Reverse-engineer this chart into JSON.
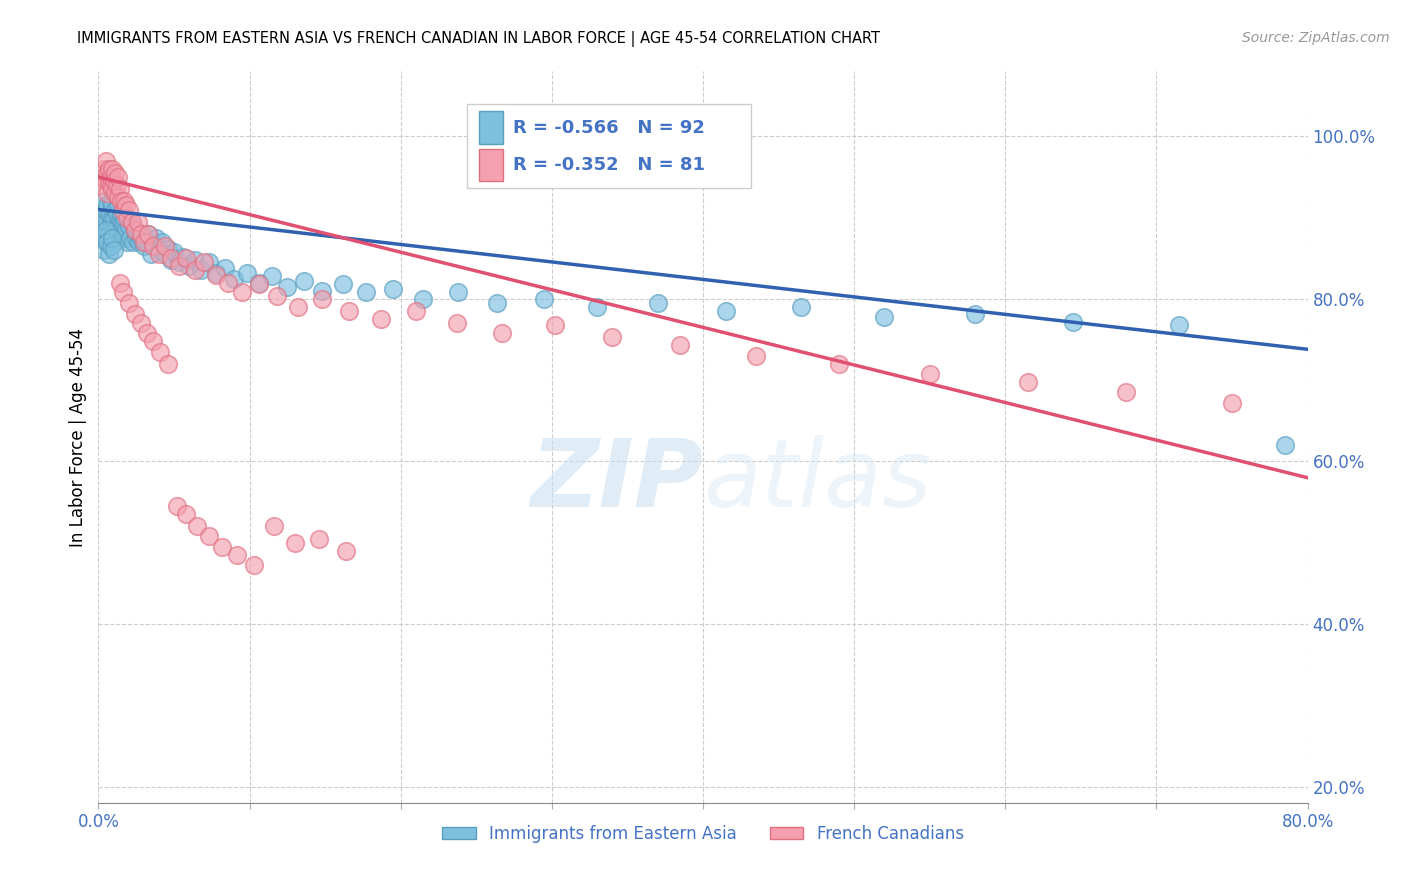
{
  "title": "IMMIGRANTS FROM EASTERN ASIA VS FRENCH CANADIAN IN LABOR FORCE | AGE 45-54 CORRELATION CHART",
  "source": "Source: ZipAtlas.com",
  "ylabel": "In Labor Force | Age 45-54",
  "legend_blue_r": "R = -0.566",
  "legend_blue_n": "N = 92",
  "legend_pink_r": "R = -0.352",
  "legend_pink_n": "N = 81",
  "legend_blue_label": "Immigrants from Eastern Asia",
  "legend_pink_label": "French Canadians",
  "blue_color": "#7fbfdf",
  "pink_color": "#f4a0b0",
  "blue_edge_color": "#5a9fc0",
  "pink_edge_color": "#e07080",
  "blue_line_color": "#3060b0",
  "pink_line_color": "#e05070",
  "axis_label_color": "#4472c4",
  "watermark_color": "#c8dff0",
  "xmin": 0.0,
  "xmax": 0.8,
  "ymin": 0.18,
  "ymax": 1.08,
  "blue_scatter_x": [
    0.002,
    0.003,
    0.004,
    0.004,
    0.005,
    0.005,
    0.006,
    0.006,
    0.007,
    0.007,
    0.008,
    0.008,
    0.009,
    0.009,
    0.01,
    0.01,
    0.011,
    0.011,
    0.012,
    0.012,
    0.013,
    0.013,
    0.014,
    0.014,
    0.015,
    0.015,
    0.016,
    0.016,
    0.017,
    0.017,
    0.018,
    0.019,
    0.02,
    0.021,
    0.022,
    0.023,
    0.024,
    0.025,
    0.026,
    0.027,
    0.028,
    0.03,
    0.032,
    0.033,
    0.035,
    0.037,
    0.038,
    0.04,
    0.042,
    0.044,
    0.046,
    0.048,
    0.05,
    0.053,
    0.056,
    0.06,
    0.064,
    0.068,
    0.073,
    0.078,
    0.084,
    0.09,
    0.098,
    0.106,
    0.115,
    0.125,
    0.136,
    0.148,
    0.162,
    0.177,
    0.195,
    0.215,
    0.238,
    0.264,
    0.295,
    0.33,
    0.37,
    0.415,
    0.465,
    0.52,
    0.58,
    0.645,
    0.715,
    0.785,
    0.003,
    0.004,
    0.005,
    0.006,
    0.007,
    0.008,
    0.009,
    0.01
  ],
  "blue_scatter_y": [
    0.9,
    0.88,
    0.92,
    0.895,
    0.91,
    0.87,
    0.895,
    0.915,
    0.905,
    0.88,
    0.92,
    0.895,
    0.9,
    0.915,
    0.885,
    0.9,
    0.91,
    0.87,
    0.89,
    0.905,
    0.88,
    0.915,
    0.895,
    0.9,
    0.885,
    0.905,
    0.88,
    0.895,
    0.875,
    0.9,
    0.885,
    0.87,
    0.89,
    0.875,
    0.895,
    0.87,
    0.885,
    0.875,
    0.88,
    0.87,
    0.875,
    0.865,
    0.87,
    0.88,
    0.855,
    0.868,
    0.875,
    0.86,
    0.87,
    0.855,
    0.862,
    0.848,
    0.858,
    0.845,
    0.852,
    0.84,
    0.848,
    0.835,
    0.845,
    0.832,
    0.838,
    0.825,
    0.832,
    0.82,
    0.828,
    0.815,
    0.822,
    0.81,
    0.818,
    0.808,
    0.812,
    0.8,
    0.808,
    0.795,
    0.8,
    0.79,
    0.795,
    0.785,
    0.79,
    0.778,
    0.782,
    0.772,
    0.768,
    0.62,
    0.875,
    0.86,
    0.885,
    0.87,
    0.855,
    0.865,
    0.875,
    0.86
  ],
  "pink_scatter_x": [
    0.002,
    0.003,
    0.004,
    0.005,
    0.005,
    0.006,
    0.006,
    0.007,
    0.007,
    0.008,
    0.008,
    0.009,
    0.009,
    0.01,
    0.011,
    0.011,
    0.012,
    0.013,
    0.013,
    0.014,
    0.015,
    0.016,
    0.017,
    0.018,
    0.019,
    0.02,
    0.022,
    0.024,
    0.026,
    0.028,
    0.03,
    0.033,
    0.036,
    0.04,
    0.044,
    0.048,
    0.053,
    0.058,
    0.064,
    0.07,
    0.078,
    0.086,
    0.095,
    0.106,
    0.118,
    0.132,
    0.148,
    0.166,
    0.187,
    0.21,
    0.237,
    0.267,
    0.302,
    0.34,
    0.385,
    0.435,
    0.49,
    0.55,
    0.615,
    0.68,
    0.75,
    0.014,
    0.016,
    0.02,
    0.024,
    0.028,
    0.032,
    0.036,
    0.041,
    0.046,
    0.052,
    0.058,
    0.065,
    0.073,
    0.082,
    0.092,
    0.103,
    0.116,
    0.13,
    0.146,
    0.164
  ],
  "pink_scatter_y": [
    0.94,
    0.95,
    0.96,
    0.945,
    0.97,
    0.955,
    0.93,
    0.945,
    0.96,
    0.94,
    0.95,
    0.935,
    0.96,
    0.945,
    0.93,
    0.955,
    0.94,
    0.925,
    0.95,
    0.935,
    0.92,
    0.908,
    0.92,
    0.915,
    0.9,
    0.91,
    0.895,
    0.885,
    0.895,
    0.88,
    0.87,
    0.88,
    0.865,
    0.855,
    0.865,
    0.85,
    0.84,
    0.85,
    0.835,
    0.845,
    0.83,
    0.82,
    0.808,
    0.818,
    0.803,
    0.79,
    0.8,
    0.785,
    0.775,
    0.785,
    0.77,
    0.758,
    0.768,
    0.753,
    0.743,
    0.73,
    0.72,
    0.708,
    0.698,
    0.685,
    0.672,
    0.82,
    0.808,
    0.795,
    0.782,
    0.77,
    0.758,
    0.748,
    0.735,
    0.72,
    0.545,
    0.535,
    0.52,
    0.508,
    0.495,
    0.485,
    0.472,
    0.52,
    0.5,
    0.505,
    0.49
  ],
  "blue_trendline_x": [
    0.0,
    0.8
  ],
  "blue_trendline_y": [
    0.91,
    0.738
  ],
  "pink_trendline_x": [
    0.0,
    0.8
  ],
  "pink_trendline_y": [
    0.95,
    0.58
  ],
  "yticks": [
    0.2,
    0.4,
    0.6,
    0.8,
    1.0
  ],
  "ytick_labels": [
    "20.0%",
    "40.0%",
    "60.0%",
    "80.0%",
    "100.0%"
  ],
  "xtick_positions": [
    0.0,
    0.1,
    0.2,
    0.3,
    0.4,
    0.5,
    0.6,
    0.7,
    0.8
  ],
  "xtick_labels_show": [
    "0.0%",
    "",
    "",
    "",
    "",
    "",
    "",
    "",
    "80.0%"
  ]
}
